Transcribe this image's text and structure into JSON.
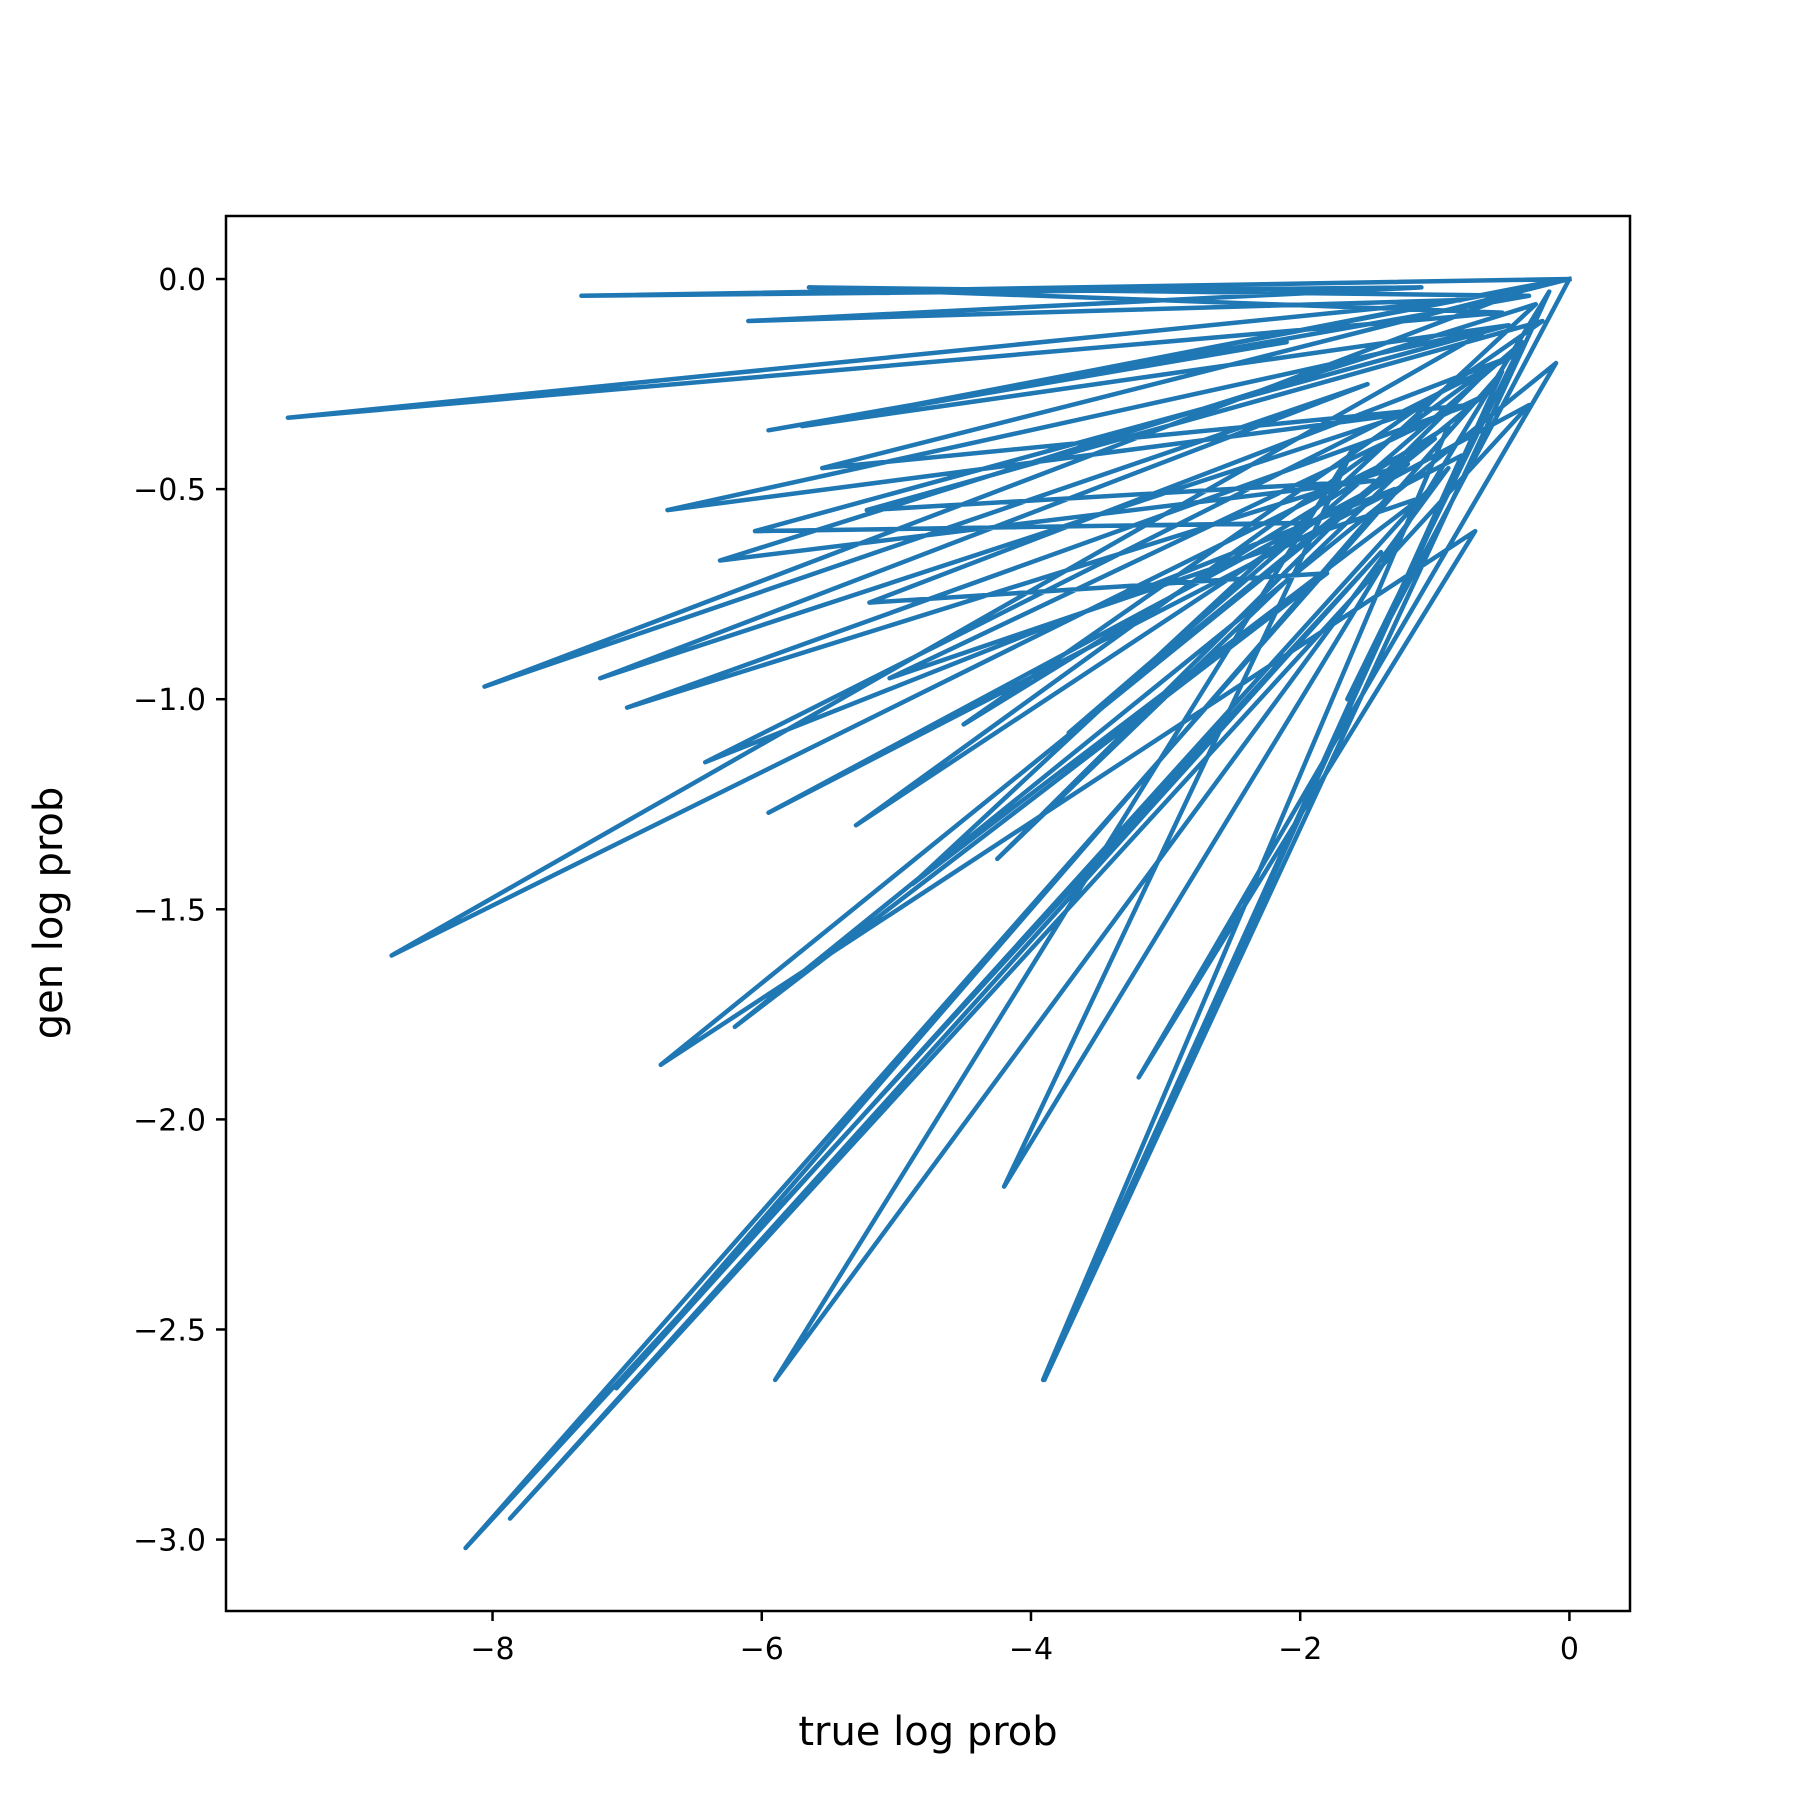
{
  "chart_data": {
    "type": "line",
    "xlabel": "true log prob",
    "ylabel": "gen log prob",
    "xlim": [
      -9.98,
      0.45
    ],
    "ylim": [
      -3.17,
      0.15
    ],
    "xticks": [
      -8,
      -6,
      -4,
      -2,
      0
    ],
    "xtick_labels": [
      "−8",
      "−6",
      "−4",
      "−2",
      "0"
    ],
    "yticks": [
      0.0,
      -0.5,
      -1.0,
      -1.5,
      -2.0,
      -2.5,
      -3.0
    ],
    "ytick_labels": [
      "0.0",
      "−0.5",
      "−1.0",
      "−1.5",
      "−2.0",
      "−2.5",
      "−3.0"
    ],
    "grid": false,
    "legend": false,
    "series": [
      {
        "color": "#1f77b4",
        "x": [
          0,
          -7.34,
          -1.1,
          -6.1,
          -0.8,
          -9.52,
          -0.5,
          -5.65,
          -0.3,
          -5.95,
          -2.1,
          -4.55,
          -0.2,
          -8.06,
          -1.5,
          -7.2,
          -1.2,
          -6.7,
          -0.6,
          -8.75,
          -1.0,
          -6.75,
          -0.7,
          -3.2,
          -0.1,
          -6.2,
          -1.8,
          -5.2,
          -0.4,
          -6.42,
          -1.3,
          -7.08,
          -0.9,
          -5.9,
          -1.6,
          -4.2,
          -0.15,
          -3.9,
          -0.5,
          -8.2,
          -1.4,
          -7.87,
          -0.3,
          -5.95,
          -0.8,
          -3.91,
          -0.9,
          -4.5,
          -0.2,
          -5.22,
          -1.45,
          -6.31,
          -0.25,
          -4.88,
          -1.1,
          -5.05,
          -0.65,
          -3.72,
          -0.35,
          -1.65,
          0,
          -5.7,
          -0.45,
          -6.05,
          -1.9,
          -5.3,
          -0.55,
          -4.25,
          -1.2,
          -7.0,
          -0.75,
          -5.55,
          0
        ],
        "y": [
          0,
          -0.04,
          -0.02,
          -0.1,
          -0.05,
          -0.33,
          -0.08,
          -0.02,
          -0.04,
          -0.36,
          -0.15,
          -0.28,
          -0.01,
          -0.97,
          -0.25,
          -0.95,
          -0.32,
          -0.55,
          -0.12,
          -1.61,
          -0.38,
          -1.87,
          -0.6,
          -1.9,
          -0.2,
          -1.78,
          -0.7,
          -0.77,
          -0.18,
          -1.15,
          -0.5,
          -2.64,
          -0.45,
          -2.62,
          -0.4,
          -2.16,
          -0.03,
          -2.62,
          -0.22,
          -3.02,
          -0.65,
          -2.95,
          -0.3,
          -1.27,
          -0.42,
          -2.62,
          -0.35,
          -1.06,
          -0.1,
          -0.55,
          -0.48,
          -0.67,
          -0.06,
          -1.44,
          -0.52,
          -0.95,
          -0.28,
          -1.08,
          -0.15,
          -1.0,
          0,
          -0.35,
          -0.11,
          -0.6,
          -0.58,
          -1.3,
          -0.2,
          -1.38,
          -0.44,
          -1.02,
          -0.3,
          -0.45,
          0
        ]
      }
    ]
  }
}
